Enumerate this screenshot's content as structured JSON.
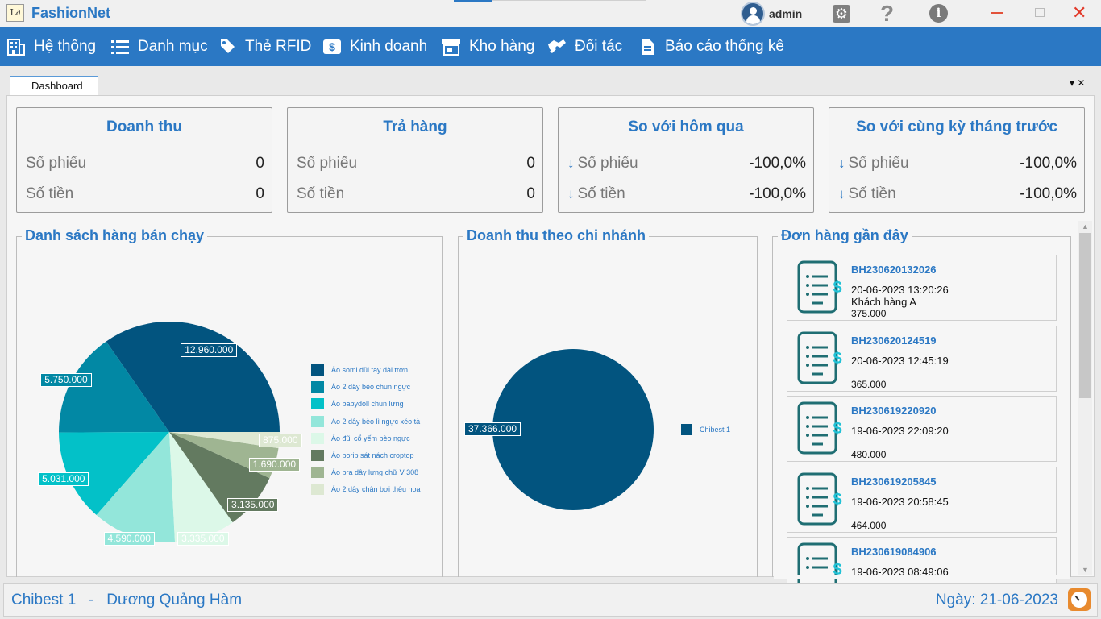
{
  "app": {
    "title": "FashionNet",
    "user": "admin"
  },
  "window_controls": {
    "min": "−",
    "close": "✕"
  },
  "menu": [
    {
      "label": "Hệ thống",
      "icon": "building-icon"
    },
    {
      "label": "Danh mục",
      "icon": "list-icon"
    },
    {
      "label": "Thẻ RFID",
      "icon": "tag-icon"
    },
    {
      "label": "Kinh doanh",
      "icon": "dollar-icon"
    },
    {
      "label": "Kho hàng",
      "icon": "store-icon"
    },
    {
      "label": "Đối tác",
      "icon": "handshake-icon"
    },
    {
      "label": "Báo cáo thống kê",
      "icon": "document-icon"
    }
  ],
  "tab": {
    "label": "Dashboard",
    "controls": "▾ ✕"
  },
  "cards": [
    {
      "title": "Doanh thu",
      "rows": [
        {
          "label": "Số phiếu",
          "value": "0"
        },
        {
          "label": "Số tiền",
          "value": "0"
        }
      ]
    },
    {
      "title": "Trả hàng",
      "rows": [
        {
          "label": "Số phiếu",
          "value": "0"
        },
        {
          "label": "Số tiền",
          "value": "0"
        }
      ]
    },
    {
      "title": "So với hôm qua",
      "rows": [
        {
          "label": "Số phiếu",
          "value": "-100,0%"
        },
        {
          "label": "Số tiền",
          "value": "-100,0%"
        }
      ]
    },
    {
      "title": "So với cùng kỳ tháng trước",
      "rows": [
        {
          "label": "Số phiếu",
          "value": "-100,0%"
        },
        {
          "label": "Số tiền",
          "value": "-100,0%"
        }
      ]
    }
  ],
  "colors": {
    "accent": "#2b78c4"
  },
  "panels": {
    "best_sellers": "Danh sách hàng bán chạy",
    "branch_revenue": "Doanh thu theo chi nhánh",
    "recent_orders": "Đơn hàng gần đây"
  },
  "chart_data": [
    {
      "type": "pie",
      "categories": [
        "Áo somi đũi tay dài trơn",
        "Áo 2 dây bèo chun ngực",
        "Áo babydoll chun lưng",
        "Áo 2 dây bèo lì ngực xéo tà",
        "Áo đũi cổ yếm bèo ngực",
        "Áo borip sát nách croptop",
        "Áo bra dây lưng chữ V 308",
        "Áo 2 dây chân bơi thêu hoa"
      ],
      "values": [
        12960000,
        5750000,
        5031000,
        4590000,
        3335000,
        3135000,
        1690000,
        875000
      ],
      "labels": [
        "12.960.000",
        "5.750.000",
        "5.031.000",
        "4.590.000",
        "3.335.000",
        "3.135.000",
        "1.690.000",
        "875.000"
      ],
      "colors": [
        "#02547f",
        "#0288a4",
        "#03c1c8",
        "#93e6da",
        "#dcf8e8",
        "#637a60",
        "#9fb592",
        "#dde8d2"
      ]
    },
    {
      "type": "pie",
      "categories": [
        "Chibest 1"
      ],
      "values": [
        37366000
      ],
      "labels": [
        "37.366.000"
      ],
      "colors": [
        "#02547f"
      ]
    }
  ],
  "orders": [
    {
      "code": "BH230620132026",
      "datetime": "20-06-2023 13:20:26",
      "customer": "Khách hàng A",
      "amount": "375.000"
    },
    {
      "code": "BH230620124519",
      "datetime": "20-06-2023 12:45:19",
      "customer": "",
      "amount": "365.000"
    },
    {
      "code": "BH230619220920",
      "datetime": "19-06-2023 22:09:20",
      "customer": "",
      "amount": "480.000"
    },
    {
      "code": "BH230619205845",
      "datetime": "19-06-2023 20:58:45",
      "customer": "",
      "amount": "464.000"
    },
    {
      "code": "BH230619084906",
      "datetime": "19-06-2023 08:49:06",
      "customer": "",
      "amount": ""
    }
  ],
  "status": {
    "branch": "Chibest 1   -   Dương Quảng Hàm",
    "date": "Ngày: 21-06-2023"
  }
}
